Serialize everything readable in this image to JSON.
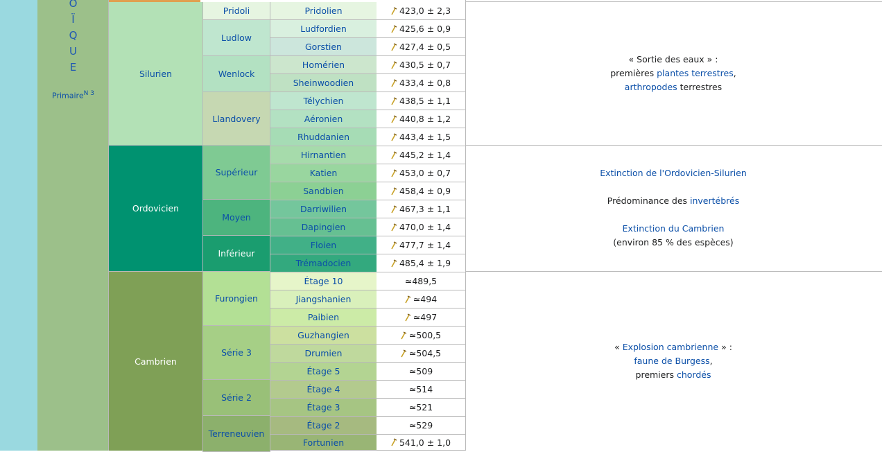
{
  "eon_letters": [
    "O",
    "Ï",
    "Q",
    "U",
    "E"
  ],
  "era": {
    "label": "Primaire",
    "note_ref": "N 3"
  },
  "periods": [
    {
      "name": "Silurien",
      "color": "#b3e1b6"
    },
    {
      "name": "Ordovicien",
      "color": "#009270"
    },
    {
      "name": "Cambrien",
      "color": "#7fa056"
    }
  ],
  "series": [
    {
      "name": "Ludlow",
      "color": "#bfe6cf"
    },
    {
      "name": "Wenlock",
      "color": "#b3e1c2"
    },
    {
      "name": "Llandovery",
      "color": "#c6d8b2"
    },
    {
      "name": "Supérieur",
      "color": "#7fca93"
    },
    {
      "name": "Moyen",
      "color": "#4db47e"
    },
    {
      "name": "Inférieur",
      "color": "#1a9d6f"
    },
    {
      "name": "Furongien",
      "color": "#b3e095"
    },
    {
      "name": "Série 3",
      "color": "#a6cf86"
    },
    {
      "name": "Série 2",
      "color": "#99c078"
    },
    {
      "name": "Terreneuvien",
      "color": "#8cb06c"
    }
  ],
  "stages": [
    {
      "series": "Pridoli",
      "name": "Pridolien",
      "age": "423,0 ± 2,3",
      "gssp": true,
      "color": "#e6f5e1"
    },
    {
      "name": "Ludfordien",
      "age": "425,6 ± 0,9",
      "gssp": true,
      "color": "#d9f0df"
    },
    {
      "name": "Gorstien",
      "age": "427,4 ± 0,5",
      "gssp": true,
      "color": "#cce6dc"
    },
    {
      "name": "Homérien",
      "age": "430,5 ± 0,7",
      "gssp": true,
      "color": "#cce6cd"
    },
    {
      "name": "Sheinwoodien",
      "age": "433,4 ± 0,8",
      "gssp": true,
      "color": "#bfe1c3"
    },
    {
      "name": "Télychien",
      "age": "438,5 ± 1,1",
      "gssp": true,
      "color": "#bfe6cf"
    },
    {
      "name": "Aéronien",
      "age": "440,8 ± 1,2",
      "gssp": true,
      "color": "#b3e1c2"
    },
    {
      "name": "Rhuddanien",
      "age": "443,4 ± 1,5",
      "gssp": true,
      "color": "#a6dcb5"
    },
    {
      "name": "Hirnantien",
      "age": "445,2 ± 1,4",
      "gssp": true,
      "color": "#a6dbab"
    },
    {
      "name": "Katien",
      "age": "453,0 ± 0,7",
      "gssp": true,
      "color": "#99d69f"
    },
    {
      "name": "Sandbien",
      "age": "458,4 ± 0,9",
      "gssp": true,
      "color": "#8cd094"
    },
    {
      "name": "Darriwilien",
      "age": "467,3 ± 1,1",
      "gssp": true,
      "color": "#74c69c"
    },
    {
      "name": "Dapingien",
      "age": "470,0 ± 1,4",
      "gssp": true,
      "color": "#66c092"
    },
    {
      "name": "Floien",
      "age": "477,7 ± 1,4",
      "gssp": true,
      "color": "#41b087"
    },
    {
      "name": "Trémadocien",
      "age": "485,4 ± 1,9",
      "gssp": true,
      "color": "#33a97e"
    },
    {
      "name": "Étage 10",
      "age": "≃489,5",
      "gssp": false,
      "color": "#e6f5c9"
    },
    {
      "name": "Jiangshanien",
      "age": "≃494",
      "gssp": true,
      "color": "#d9f0bb"
    },
    {
      "name": "Paibien",
      "age": "≃497",
      "gssp": true,
      "color": "#cceba7"
    },
    {
      "name": "Guzhangien",
      "age": "≃500,5",
      "gssp": true,
      "color": "#cce0a0"
    },
    {
      "name": "Drumien",
      "age": "≃504,5",
      "gssp": true,
      "color": "#bfd99d"
    },
    {
      "name": "Étage 5",
      "age": "≃509",
      "gssp": false,
      "color": "#b3d492"
    },
    {
      "name": "Étage 4",
      "age": "≃514",
      "gssp": false,
      "color": "#b3ca8e"
    },
    {
      "name": "Étage 3",
      "age": "≃521",
      "gssp": false,
      "color": "#a6c583"
    },
    {
      "name": "Étage 2",
      "age": "≃529",
      "gssp": false,
      "color": "#a6ba80"
    },
    {
      "name": "Fortunien",
      "age": "541,0 ± 1,0",
      "gssp": true,
      "color": "#99b575"
    }
  ],
  "events": {
    "silurien": {
      "line1": "« Sortie des eaux » :",
      "line2_prefix": "premières ",
      "line2_link": "plantes terrestres",
      "line2_suffix": ",",
      "line3_link": "arthropodes",
      "line3_suffix": " terrestres"
    },
    "ordovicien": {
      "extinction1": "Extinction de l'Ordovicien-Silurien",
      "predominance_prefix": "Prédominance des ",
      "predominance_link": "invertébrés",
      "extinction2": "Extinction du Cambrien",
      "extinction2_note": "(environ 85 % des espèces)"
    },
    "cambrien": {
      "line1_prefix": "« ",
      "line1_link": "Explosion cambrienne",
      "line1_suffix": " » :",
      "line2_link": "faune de Burgess",
      "line2_suffix": ",",
      "line3_prefix": "premiers ",
      "line3_link": "chordés"
    }
  },
  "colors": {
    "left_strip": "#9ad9e0",
    "eon_column": "#9cc08a",
    "link": "#0b4fa8",
    "gssp_pin": "#c9a227"
  }
}
